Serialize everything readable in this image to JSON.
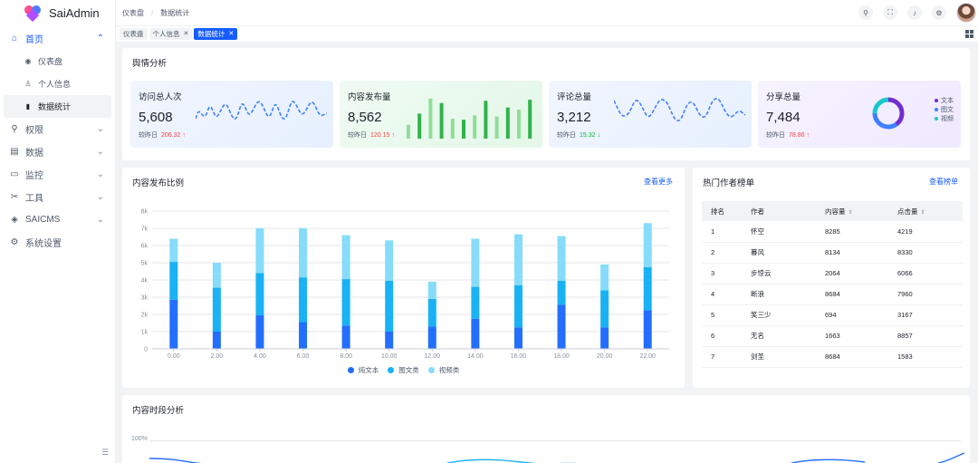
{
  "app": {
    "name": "SaiAdmin"
  },
  "sidebar": {
    "home": "首页",
    "sub_items": [
      {
        "label": "仪表盘",
        "icon": "dashboard-icon"
      },
      {
        "label": "个人信息",
        "icon": "user-icon"
      },
      {
        "label": "数据统计",
        "icon": "bar-chart-icon"
      }
    ],
    "items": [
      {
        "label": "权限",
        "icon": "permission-icon"
      },
      {
        "label": "数据",
        "icon": "data-icon"
      },
      {
        "label": "监控",
        "icon": "monitor-icon"
      },
      {
        "label": "工具",
        "icon": "tool-icon"
      },
      {
        "label": "SAICMS",
        "icon": "cms-icon"
      },
      {
        "label": "系统设置",
        "icon": "settings-icon"
      }
    ]
  },
  "breadcrumb": [
    "仪表盘",
    "数据统计"
  ],
  "tabs": [
    {
      "label": "仪表盘"
    },
    {
      "label": "个人信息"
    },
    {
      "label": "数据统计"
    }
  ],
  "overview": {
    "title": "舆情分析",
    "compare_label": "较昨日",
    "cards": [
      {
        "title": "访问总人次",
        "value": "5,608",
        "delta": "206.32",
        "trend": "up"
      },
      {
        "title": "内容发布量",
        "value": "8,562",
        "delta": "120.15",
        "trend": "up"
      },
      {
        "title": "评论总量",
        "value": "3,212",
        "delta": "15.32",
        "trend": "down"
      },
      {
        "title": "分享总量",
        "value": "7,484",
        "delta": "78.86",
        "trend": "up"
      }
    ],
    "publish_bars": [
      25,
      45,
      72,
      64,
      36,
      34,
      42,
      68,
      40,
      56,
      52,
      70
    ],
    "share_legend": [
      "文本",
      "图文",
      "视频"
    ],
    "share_pie": [
      40,
      35,
      25
    ],
    "colors": {
      "blue": "#4080ff",
      "green": "#00b42a",
      "purple": "#722ed1",
      "cyan": "#14c9c9"
    }
  },
  "ratio": {
    "title": "内容发布比例",
    "more": "查看更多"
  },
  "chart_data": {
    "type": "bar",
    "stacked": true,
    "categories": [
      "0:00",
      "2:00",
      "4:00",
      "6:00",
      "8:00",
      "10:00",
      "12:00",
      "14:00",
      "16:00",
      "18:00",
      "20:00",
      "22:00"
    ],
    "category_labels": [
      "0.00",
      "2.00",
      "4.00",
      "6.00",
      "8.00",
      "10.00",
      "12.00",
      "14.00",
      "16.00",
      "18.00",
      "20.00",
      "22.00"
    ],
    "yticks": [
      "0",
      "1k",
      "2k",
      "3k",
      "4k",
      "5k",
      "6k",
      "7k",
      "8k"
    ],
    "ylim": [
      0,
      8000
    ],
    "grid": true,
    "legend_position": "bottom",
    "series": [
      {
        "name": "纯文本",
        "color": "#246efd",
        "values": [
          2850,
          1000,
          1950,
          1550,
          1350,
          1000,
          1300,
          1750,
          1250,
          2550,
          1250,
          2250
        ]
      },
      {
        "name": "图文类",
        "color": "#19b2f5",
        "values": [
          2200,
          2550,
          2450,
          2600,
          2700,
          2950,
          1600,
          1850,
          2450,
          1400,
          2150,
          2500
        ]
      },
      {
        "name": "视频类",
        "color": "#86dcfa",
        "values": [
          1350,
          1450,
          2600,
          2850,
          2550,
          2350,
          1000,
          2800,
          2950,
          2600,
          1500,
          2550
        ]
      }
    ]
  },
  "ranking": {
    "title": "热门作者榜单",
    "more": "查看榜单",
    "columns": [
      "排名",
      "作者",
      "内容量",
      "点击量"
    ],
    "rows": [
      [
        "1",
        "怀空",
        "8285",
        "4219"
      ],
      [
        "2",
        "暮风",
        "8134",
        "8330"
      ],
      [
        "3",
        "步惊云",
        "2064",
        "6066"
      ],
      [
        "4",
        "断浪",
        "8684",
        "7960"
      ],
      [
        "5",
        "笑三少",
        "694",
        "3167"
      ],
      [
        "6",
        "无名",
        "1663",
        "8857"
      ],
      [
        "7",
        "剑圣",
        "8684",
        "1583"
      ]
    ]
  },
  "timeline": {
    "title": "内容时段分析",
    "ytick": "100%"
  }
}
